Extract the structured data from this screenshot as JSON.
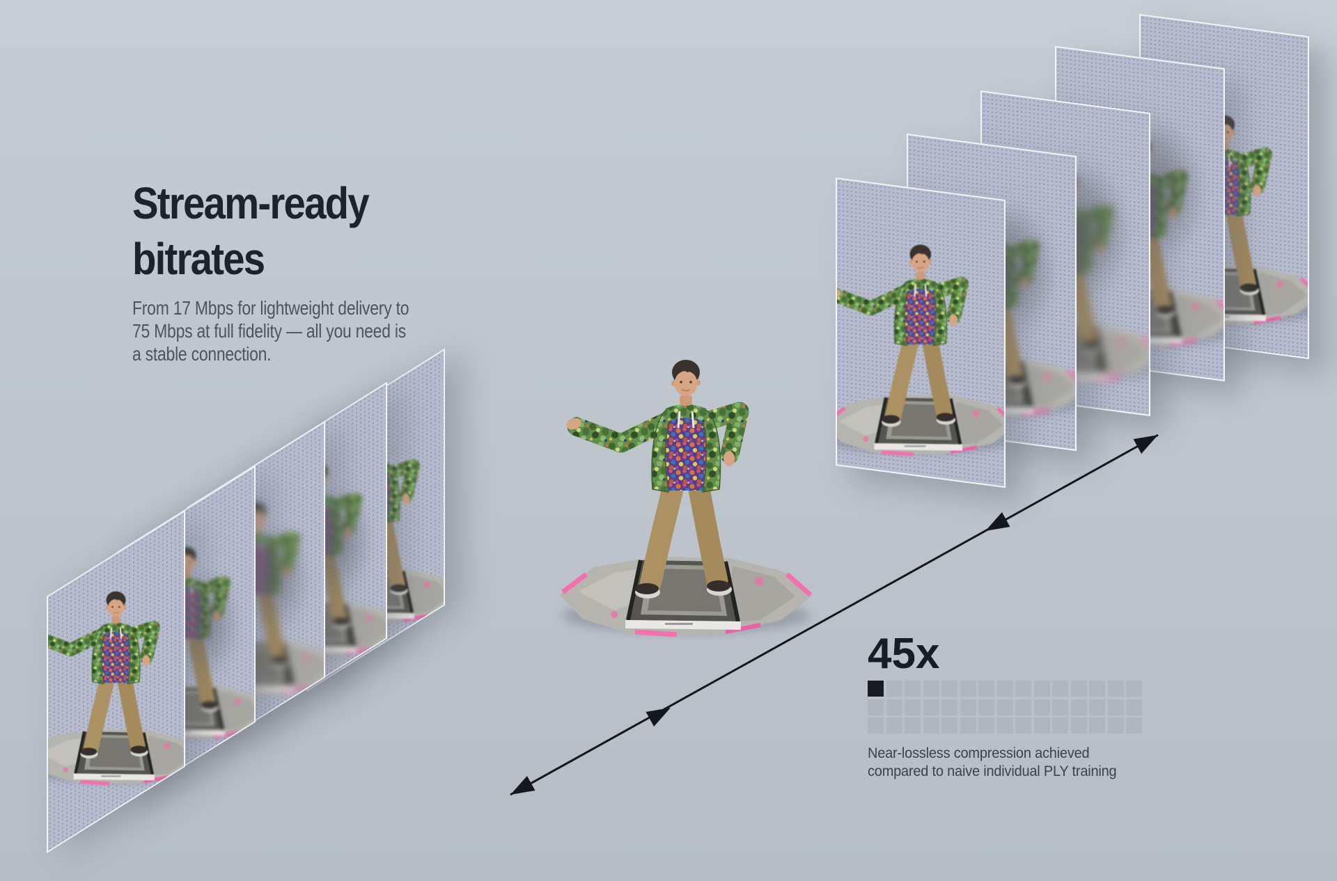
{
  "colors": {
    "bg_top": "#c8cdd5",
    "bg_main": "#bdc4cc",
    "card_bg": "#b6bccd",
    "card_edge": "#f3f5f8",
    "title": "#1d222e",
    "body": "#4a5462",
    "factor": "#181c24",
    "caption": "#3a424e",
    "cell_empty": "#b0b6c0",
    "cell_filled": "#171a21",
    "arrow": "#14171d",
    "accent_pink": "#f56fae",
    "jacket_green": "#618e4a",
    "pants_khaki": "#ac9162"
  },
  "headline": {
    "title_lines": [
      "Stream-ready",
      "bitrates"
    ],
    "body_lines": [
      "From 17 Mbps for lightweight delivery to",
      "75 Mbps at full fidelity — all you need is",
      "a stable connection."
    ]
  },
  "compression": {
    "factor": "45x",
    "caption_lines": [
      "Near-lossless compression achieved",
      "compared to naive individual PLY training"
    ],
    "grid": {
      "rows": 3,
      "columns": 15,
      "total_cells": 45,
      "filled_cells": 1
    }
  },
  "diagram": {
    "left_stack_frame_count": 5,
    "right_stack_frame_count": 5,
    "hero_frame_count": 1
  }
}
